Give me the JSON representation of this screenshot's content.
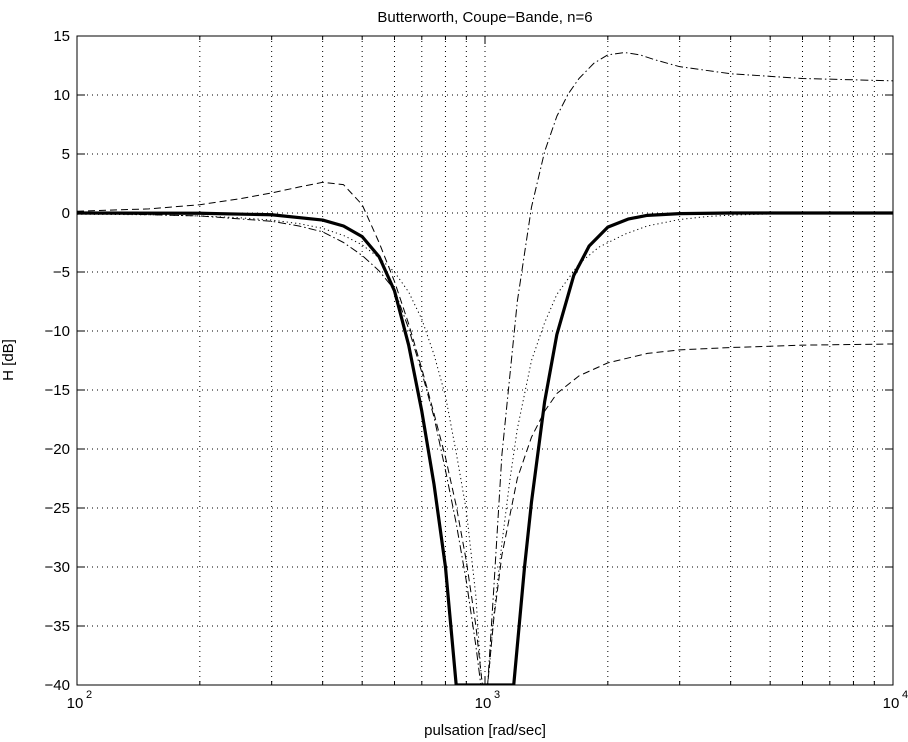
{
  "chart_data": {
    "type": "line",
    "title": "Butterworth, Coupe−Bande, n=6",
    "xlabel": "pulsation [rad/sec]",
    "ylabel": "H [dB]",
    "x_scale": "log",
    "xlim": [
      100,
      10000
    ],
    "ylim": [
      -40,
      15
    ],
    "grid": true,
    "x_ticks": [
      {
        "value": 100,
        "mantissa": "10",
        "exponent": "2"
      },
      {
        "value": 1000,
        "mantissa": "10",
        "exponent": "3"
      },
      {
        "value": 10000,
        "mantissa": "10",
        "exponent": "4"
      }
    ],
    "y_ticks": [
      {
        "value": 15,
        "label": "15"
      },
      {
        "value": 10,
        "label": "10"
      },
      {
        "value": 5,
        "label": "5"
      },
      {
        "value": 0,
        "label": "0"
      },
      {
        "value": -5,
        "label": "−5"
      },
      {
        "value": -10,
        "label": "−10"
      },
      {
        "value": -15,
        "label": "−15"
      },
      {
        "value": -20,
        "label": "−20"
      },
      {
        "value": -25,
        "label": "−25"
      },
      {
        "value": -30,
        "label": "−30"
      },
      {
        "value": -35,
        "label": "−35"
      },
      {
        "value": -40,
        "label": "−40"
      }
    ],
    "series": [
      {
        "style": "solid-thick",
        "x": [
          100,
          200,
          300,
          400,
          450,
          500,
          550,
          600,
          650,
          700,
          750,
          800,
          850,
          1176,
          1250,
          1300,
          1400,
          1500,
          1650,
          1800,
          2000,
          2250,
          2500,
          3000,
          4000,
          6000,
          10000
        ],
        "y": [
          0,
          -0.02,
          -0.15,
          -0.6,
          -1.1,
          -2.0,
          -3.7,
          -6.6,
          -11.2,
          -16.8,
          -23,
          -30,
          -40,
          -40,
          -30,
          -24.5,
          -16,
          -10.3,
          -5.3,
          -2.8,
          -1.2,
          -0.5,
          -0.2,
          -0.05,
          0,
          0,
          0
        ]
      },
      {
        "style": "dashed",
        "x": [
          100,
          150,
          200,
          250,
          300,
          350,
          400,
          450,
          500,
          550,
          600,
          650,
          700,
          750,
          800,
          850,
          900,
          950,
          985,
          1000,
          1015,
          1050,
          1100,
          1200,
          1300,
          1400,
          1500,
          1700,
          2000,
          2500,
          3000,
          4000,
          6000,
          10000
        ],
        "y": [
          0.15,
          0.35,
          0.7,
          1.2,
          1.7,
          2.2,
          2.6,
          2.4,
          0.7,
          -2.5,
          -5.8,
          -9.4,
          -13.2,
          -17,
          -20.7,
          -24.8,
          -29.5,
          -35,
          -40,
          -42,
          -40,
          -34.5,
          -29,
          -22.5,
          -19,
          -16.8,
          -15.3,
          -13.8,
          -12.7,
          -11.9,
          -11.6,
          -11.4,
          -11.2,
          -11.1
        ]
      },
      {
        "style": "dotted",
        "x": [
          100,
          150,
          200,
          250,
          300,
          350,
          400,
          450,
          500,
          550,
          600,
          650,
          700,
          750,
          800,
          850,
          900,
          950,
          975,
          1000,
          1025,
          1050,
          1100,
          1150,
          1200,
          1300,
          1400,
          1500,
          1700,
          1900,
          2200,
          2500,
          3000,
          3500,
          4000,
          5000,
          10000
        ],
        "y": [
          -0.1,
          -0.15,
          -0.25,
          -0.4,
          -0.6,
          -0.9,
          -1.3,
          -1.9,
          -2.7,
          -3.8,
          -5.0,
          -6.7,
          -9.0,
          -12.0,
          -15.5,
          -20.3,
          -25.2,
          -32.5,
          -38.5,
          -42,
          -38.5,
          -34.2,
          -28,
          -22.7,
          -18.3,
          -12.5,
          -9.3,
          -6.9,
          -4.3,
          -2.9,
          -1.8,
          -1.1,
          -0.55,
          -0.3,
          -0.18,
          -0.08,
          0
        ]
      },
      {
        "style": "dash-dot",
        "x": [
          100,
          200,
          300,
          350,
          400,
          450,
          500,
          550,
          600,
          650,
          700,
          750,
          800,
          850,
          900,
          950,
          985,
          1000,
          1015,
          1050,
          1100,
          1200,
          1300,
          1400,
          1500,
          1600,
          1700,
          1850,
          2000,
          2200,
          2400,
          2600,
          3000,
          4000,
          6000,
          10000
        ],
        "y": [
          0,
          -0.25,
          -0.7,
          -1.1,
          -1.6,
          -2.5,
          -3.6,
          -4.9,
          -6.5,
          -9.8,
          -13.5,
          -17.3,
          -21.8,
          -26.3,
          -31.2,
          -36.7,
          -41,
          -42,
          -40,
          -32,
          -20.5,
          -7.5,
          0.5,
          5.2,
          8.2,
          10.1,
          11.4,
          12.7,
          13.4,
          13.6,
          13.4,
          13.0,
          12.4,
          11.8,
          11.4,
          11.2
        ]
      }
    ]
  }
}
